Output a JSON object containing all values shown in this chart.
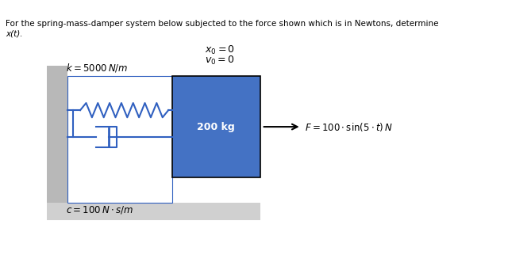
{
  "title_line1": "For the spring-mass-damper system below subjected to the force shown which is in Newtons, determine",
  "title_line2": "x(t).",
  "bg_color": "#ffffff",
  "wall_color": "#b8b8b8",
  "floor_color": "#d0d0d0",
  "mass_color": "#4472c4",
  "mass_label": "200 kg",
  "spring_label": "$k=5000\\,N/m$",
  "damper_label": "$c=100\\,N\\cdot s/m$",
  "ic_x0": "$x_0=0$",
  "ic_v0": "$v_0=0$",
  "force_label": "$F=100\\cdot\\sin(5\\cdot t)\\,N$",
  "spring_color": "#3060c0",
  "damper_color": "#3060c0",
  "line_color": "#3060c0"
}
